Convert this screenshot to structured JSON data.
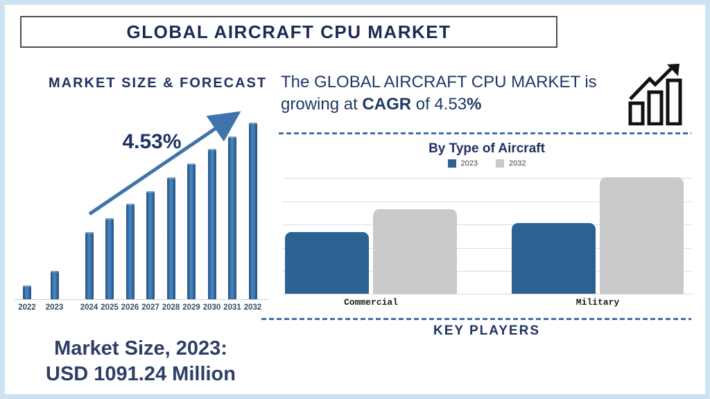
{
  "page": {
    "title": "GLOBAL AIRCRAFT CPU MARKET"
  },
  "left_panel": {
    "heading": "MARKET SIZE & FORECAST",
    "cagr_label": "4.53%",
    "market_size_line1": "Market Size, 2023:",
    "market_size_line2": "USD 1091.24 Million"
  },
  "right_panel": {
    "summary": {
      "part1": "The GLOBAL AIRCRAFT CPU MARKET is\ngrowing at ",
      "bold1": "CAGR",
      "part2": " of 4.53",
      "bold2": "%"
    },
    "growth_icon": "bar-chart-with-rising-arrow-icon",
    "key_players_heading": "KEY PLAYERS"
  },
  "colors": {
    "navy_text": "#1e3160",
    "title_text": "#1b2a52",
    "accent_arrow": "#3e74ab",
    "dashed_separator": "#3f6fa8",
    "left_bar_gradient": [
      "#1d4f7e",
      "#4b87c0",
      "#245d93"
    ],
    "bar_2023_blue": "#2b6294",
    "bar_2032_gray": "#c9cacb",
    "gridline_gray": "#dcdcdc",
    "frame_border": "#cfe2f1"
  },
  "chart_data": [
    {
      "type": "bar",
      "title": "MARKET SIZE & FORECAST",
      "categories": [
        "2022",
        "2023",
        "2024",
        "2025",
        "2026",
        "2027",
        "2028",
        "2029",
        "2030",
        "2031",
        "2032"
      ],
      "values": [
        8,
        16,
        38,
        46,
        54,
        61,
        69,
        77,
        85,
        92,
        100
      ],
      "units": "relative index (y-axis unlabeled; 2032 = 100)",
      "known_point": {
        "year": "2023",
        "value": "USD 1091.24 Million"
      },
      "annotation": "4.53% CAGR trend arrow",
      "xlabel": "",
      "ylabel": "",
      "legend_position": "none",
      "grid": false,
      "bar_color": "#2d6ca3"
    },
    {
      "type": "bar",
      "title": "By Type of Aircraft",
      "categories": [
        "Commercial",
        "Military"
      ],
      "series": [
        {
          "name": "2023",
          "color": "#2b6294",
          "values": [
            2.65,
            3.05
          ]
        },
        {
          "name": "2032",
          "color": "#c9cacb",
          "values": [
            3.65,
            5.0
          ]
        }
      ],
      "units": "relative (gridline intervals; axis unlabeled)",
      "xlabel": "",
      "ylabel": "",
      "legend_position": "top",
      "grid": true
    }
  ]
}
